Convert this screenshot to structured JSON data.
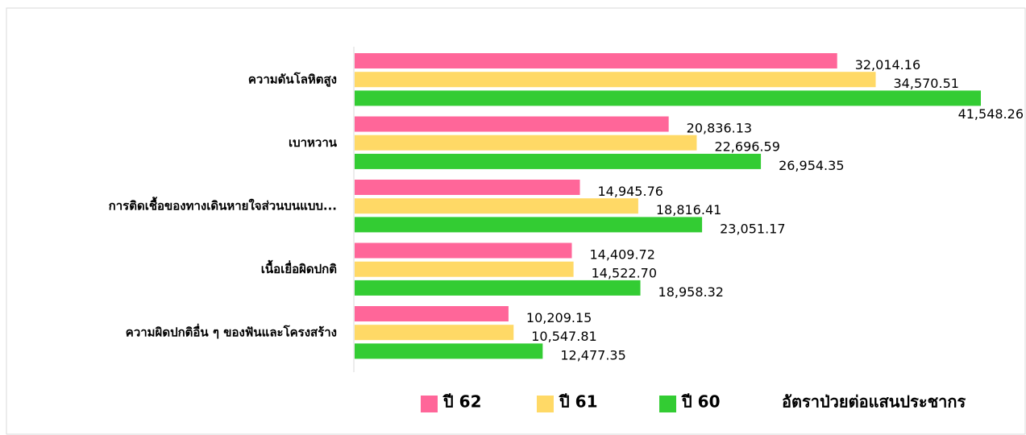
{
  "chart_data": {
    "type": "hbar",
    "categories": [
      "ความดันโลหิตสูง",
      "เบาหวาน",
      "การติดเชื้อของทางเดินหายใจส่วนบนแบบ...",
      "เนื้อเยื่อผิดปกติ",
      "ความผิดปกติอื่น ๆ ของฟันและโครงสร้าง"
    ],
    "series": [
      {
        "name": "ปี 62",
        "color": "#ff6699",
        "values": [
          32014.16,
          20836.13,
          14945.76,
          14409.72,
          10209.15
        ],
        "value_labels": [
          "32,014.16",
          "20,836.13",
          "14,945.76",
          "14,409.72",
          "10,209.15"
        ]
      },
      {
        "name": "ปี 61",
        "color": "#ffd966",
        "values": [
          34570.51,
          22696.59,
          18816.41,
          14522.7,
          10547.81
        ],
        "value_labels": [
          "34,570.51",
          "22,696.59",
          "18,816.41",
          "14,522.70",
          "10,547.81"
        ]
      },
      {
        "name": "ปี 60",
        "color": "#33cc33",
        "values": [
          41548.26,
          26954.35,
          23051.17,
          18958.32,
          12477.35
        ],
        "value_labels": [
          "41,548.26",
          "26,954.35",
          "23,051.17",
          "18,958.32",
          "12,477.35"
        ]
      }
    ],
    "value_axis_label": "อัตราป่วยต่อแสนประชากร",
    "xlim": [
      0,
      41548.26
    ]
  }
}
